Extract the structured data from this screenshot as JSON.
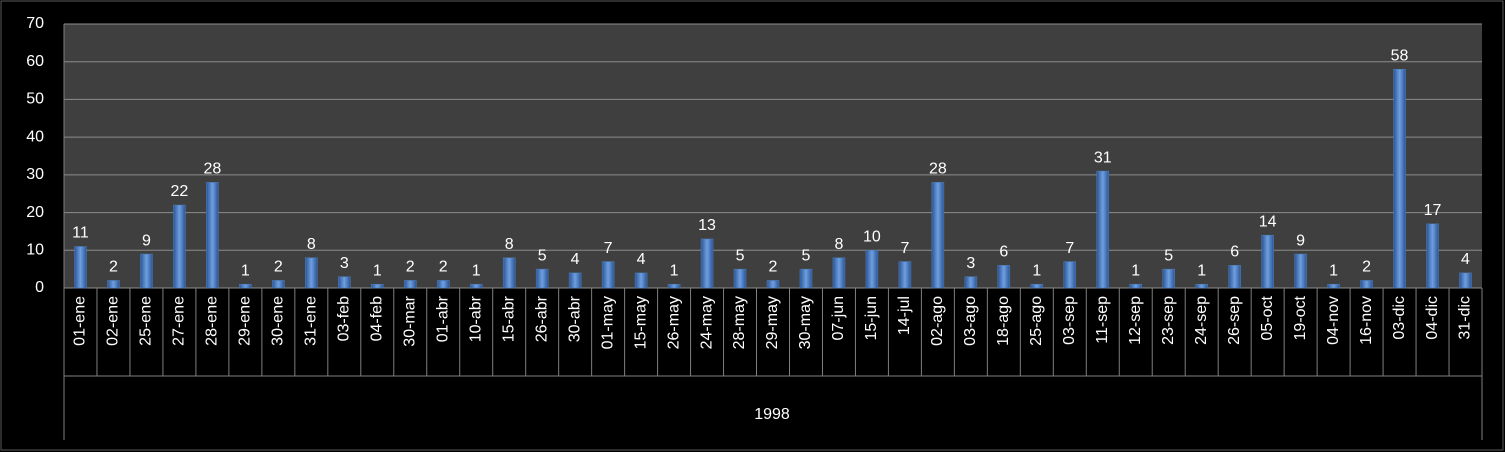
{
  "chart_data": {
    "type": "bar",
    "categories": [
      "01-ene",
      "02-ene",
      "25-ene",
      "27-ene",
      "28-ene",
      "29-ene",
      "30-ene",
      "31-ene",
      "03-feb",
      "04-feb",
      "30-mar",
      "01-abr",
      "10-abr",
      "15-abr",
      "26-abr",
      "30-abr",
      "01-may",
      "15-may",
      "26-may",
      "24-may",
      "28-may",
      "29-may",
      "30-may",
      "07-jun",
      "15-jun",
      "14-jul",
      "02-ago",
      "03-ago",
      "18-ago",
      "25-ago",
      "03-sep",
      "11-sep",
      "12-sep",
      "23-sep",
      "24-sep",
      "26-sep",
      "05-oct",
      "19-oct",
      "04-nov",
      "16-nov",
      "03-dic",
      "04-dic",
      "31-dic"
    ],
    "values": [
      11,
      2,
      9,
      22,
      28,
      1,
      2,
      8,
      3,
      1,
      2,
      2,
      1,
      8,
      5,
      4,
      7,
      4,
      1,
      13,
      5,
      2,
      5,
      8,
      10,
      7,
      28,
      3,
      6,
      1,
      7,
      31,
      1,
      5,
      1,
      6,
      14,
      9,
      1,
      2,
      58,
      17,
      4
    ],
    "group": "1998",
    "color": "#4f81bd",
    "ylim": [
      0,
      70
    ],
    "yticks": [
      0,
      10,
      20,
      30,
      40,
      50,
      60,
      70
    ],
    "grid": true
  }
}
